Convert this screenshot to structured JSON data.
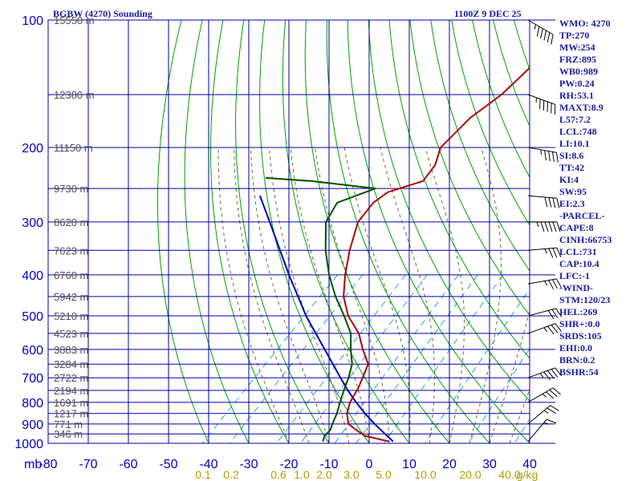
{
  "header": {
    "station": "BGBW (4270) Sounding",
    "valid": "1100Z  9 DEC 25",
    "mb_label": "mb"
  },
  "indices": [
    "WMO: 4270",
    "TP:270",
    "MW:254",
    "FRZ:895",
    "WB0:989",
    "PW:0.24",
    "RH:53.1",
    "MAXT:8.9",
    "L57:7.2",
    "LCL:748",
    "LI:10.1",
    "SI:8.6",
    "TT:42",
    "KI:4",
    "SW:95",
    "EI:2.3",
    "-PARCEL-",
    "CAPE:8",
    "CINH:66753",
    "LCL:731",
    "CAP:10.4",
    "LFC:-1",
    "-WIND-",
    "STM:120/23",
    "HEL:269",
    "SHR+:0.0",
    "SRDS:105",
    "EHI:0.0",
    "BRN:0.2",
    "BSHR:54"
  ],
  "colors": {
    "grid": "#0000a0",
    "isotherm": "#0000a0",
    "dry_adiabat": "#00a000",
    "moist_adiabat": "#6b6b3a",
    "mixing_ratio": "#30a0d0",
    "temperature": "#b00000",
    "dewpoint": "#005000",
    "parcel": "#0000b4",
    "barb": "#000000"
  },
  "chart_data": {
    "type": "skew-t",
    "title": "BGBW (4270) Sounding",
    "xlabel": "",
    "ylabel": "mb",
    "pressure_ticks": [
      100,
      200,
      300,
      400,
      500,
      600,
      700,
      800,
      900,
      1000
    ],
    "temperature_ticks": [
      -80,
      -70,
      -60,
      -50,
      -40,
      -30,
      -20,
      -10,
      0,
      10,
      20,
      30,
      40
    ],
    "height_labels": [
      {
        "p": 100,
        "label": "15550 m"
      },
      {
        "p": 150,
        "label": "12380 m"
      },
      {
        "p": 200,
        "label": "11150 m"
      },
      {
        "p": 250,
        "label": "9730 m"
      },
      {
        "p": 300,
        "label": "8620 m"
      },
      {
        "p": 350,
        "label": "7623 m"
      },
      {
        "p": 400,
        "label": "6760 m"
      },
      {
        "p": 450,
        "label": "5942 m"
      },
      {
        "p": 500,
        "label": "5210 m"
      },
      {
        "p": 550,
        "label": "4523 m"
      },
      {
        "p": 600,
        "label": "3883 m"
      },
      {
        "p": 650,
        "label": "3284 m"
      },
      {
        "p": 700,
        "label": "2722 m"
      },
      {
        "p": 750,
        "label": "2194 m"
      },
      {
        "p": 800,
        "label": "1691 m"
      },
      {
        "p": 850,
        "label": "1217 m"
      },
      {
        "p": 900,
        "label": "771 m"
      },
      {
        "p": 950,
        "label": "346 m"
      }
    ],
    "mixing_ratio_labels": [
      "0.1",
      "0.2",
      "0.6",
      "1.0",
      "2.0",
      "3.0",
      "5.0",
      "10.0",
      "20.0",
      "40.0",
      "g/kg"
    ],
    "temperature_profile": [
      {
        "p": 990,
        "t": 4.5
      },
      {
        "p": 960,
        "t": -3
      },
      {
        "p": 930,
        "t": -6.5
      },
      {
        "p": 900,
        "t": -10
      },
      {
        "p": 850,
        "t": -13
      },
      {
        "p": 800,
        "t": -15
      },
      {
        "p": 740,
        "t": -16.5
      },
      {
        "p": 700,
        "t": -18
      },
      {
        "p": 650,
        "t": -20
      },
      {
        "p": 600,
        "t": -25
      },
      {
        "p": 550,
        "t": -30
      },
      {
        "p": 500,
        "t": -37
      },
      {
        "p": 450,
        "t": -43
      },
      {
        "p": 400,
        "t": -48
      },
      {
        "p": 350,
        "t": -53
      },
      {
        "p": 300,
        "t": -58
      },
      {
        "p": 270,
        "t": -59
      },
      {
        "p": 255,
        "t": -58
      },
      {
        "p": 240,
        "t": -52
      },
      {
        "p": 220,
        "t": -53
      },
      {
        "p": 200,
        "t": -56
      },
      {
        "p": 170,
        "t": -56
      },
      {
        "p": 150,
        "t": -54
      },
      {
        "p": 100,
        "t": -53
      }
    ],
    "dewpoint_profile": [
      {
        "p": 990,
        "t": -12
      },
      {
        "p": 960,
        "t": -13
      },
      {
        "p": 930,
        "t": -13
      },
      {
        "p": 900,
        "t": -14
      },
      {
        "p": 850,
        "t": -15.5
      },
      {
        "p": 800,
        "t": -17.5
      },
      {
        "p": 750,
        "t": -19.5
      },
      {
        "p": 700,
        "t": -21.5
      },
      {
        "p": 650,
        "t": -24
      },
      {
        "p": 600,
        "t": -28
      },
      {
        "p": 550,
        "t": -32
      },
      {
        "p": 500,
        "t": -38
      },
      {
        "p": 450,
        "t": -45
      },
      {
        "p": 400,
        "t": -52
      },
      {
        "p": 350,
        "t": -59
      },
      {
        "p": 300,
        "t": -66
      },
      {
        "p": 270,
        "t": -68
      },
      {
        "p": 250,
        "t": -62
      },
      {
        "p": 240,
        "t": -80
      },
      {
        "p": 236,
        "t": -92
      }
    ],
    "parcel_profile": [
      {
        "p": 990,
        "t": 5.5
      },
      {
        "p": 900,
        "t": -3.5
      },
      {
        "p": 850,
        "t": -8.5
      },
      {
        "p": 800,
        "t": -13.5
      },
      {
        "p": 750,
        "t": -18.5
      },
      {
        "p": 700,
        "t": -23.5
      },
      {
        "p": 600,
        "t": -34.5
      },
      {
        "p": 500,
        "t": -47.5
      },
      {
        "p": 400,
        "t": -62
      },
      {
        "p": 300,
        "t": -80
      },
      {
        "p": 260,
        "t": -89
      }
    ],
    "wind_barbs": [
      {
        "p": 100,
        "dir": 300,
        "spd": 55
      },
      {
        "p": 150,
        "dir": 290,
        "spd": 60
      },
      {
        "p": 200,
        "dir": 280,
        "spd": 45
      },
      {
        "p": 260,
        "dir": 275,
        "spd": 40
      },
      {
        "p": 300,
        "dir": 270,
        "spd": 55
      },
      {
        "p": 350,
        "dir": 265,
        "spd": 35
      },
      {
        "p": 420,
        "dir": 260,
        "spd": 35
      },
      {
        "p": 500,
        "dir": 255,
        "spd": 30
      },
      {
        "p": 550,
        "dir": 250,
        "spd": 35
      },
      {
        "p": 700,
        "dir": 250,
        "spd": 45
      },
      {
        "p": 800,
        "dir": 240,
        "spd": 35
      },
      {
        "p": 900,
        "dir": 230,
        "spd": 25
      },
      {
        "p": 990,
        "dir": 220,
        "spd": 15
      }
    ],
    "grid": true
  }
}
